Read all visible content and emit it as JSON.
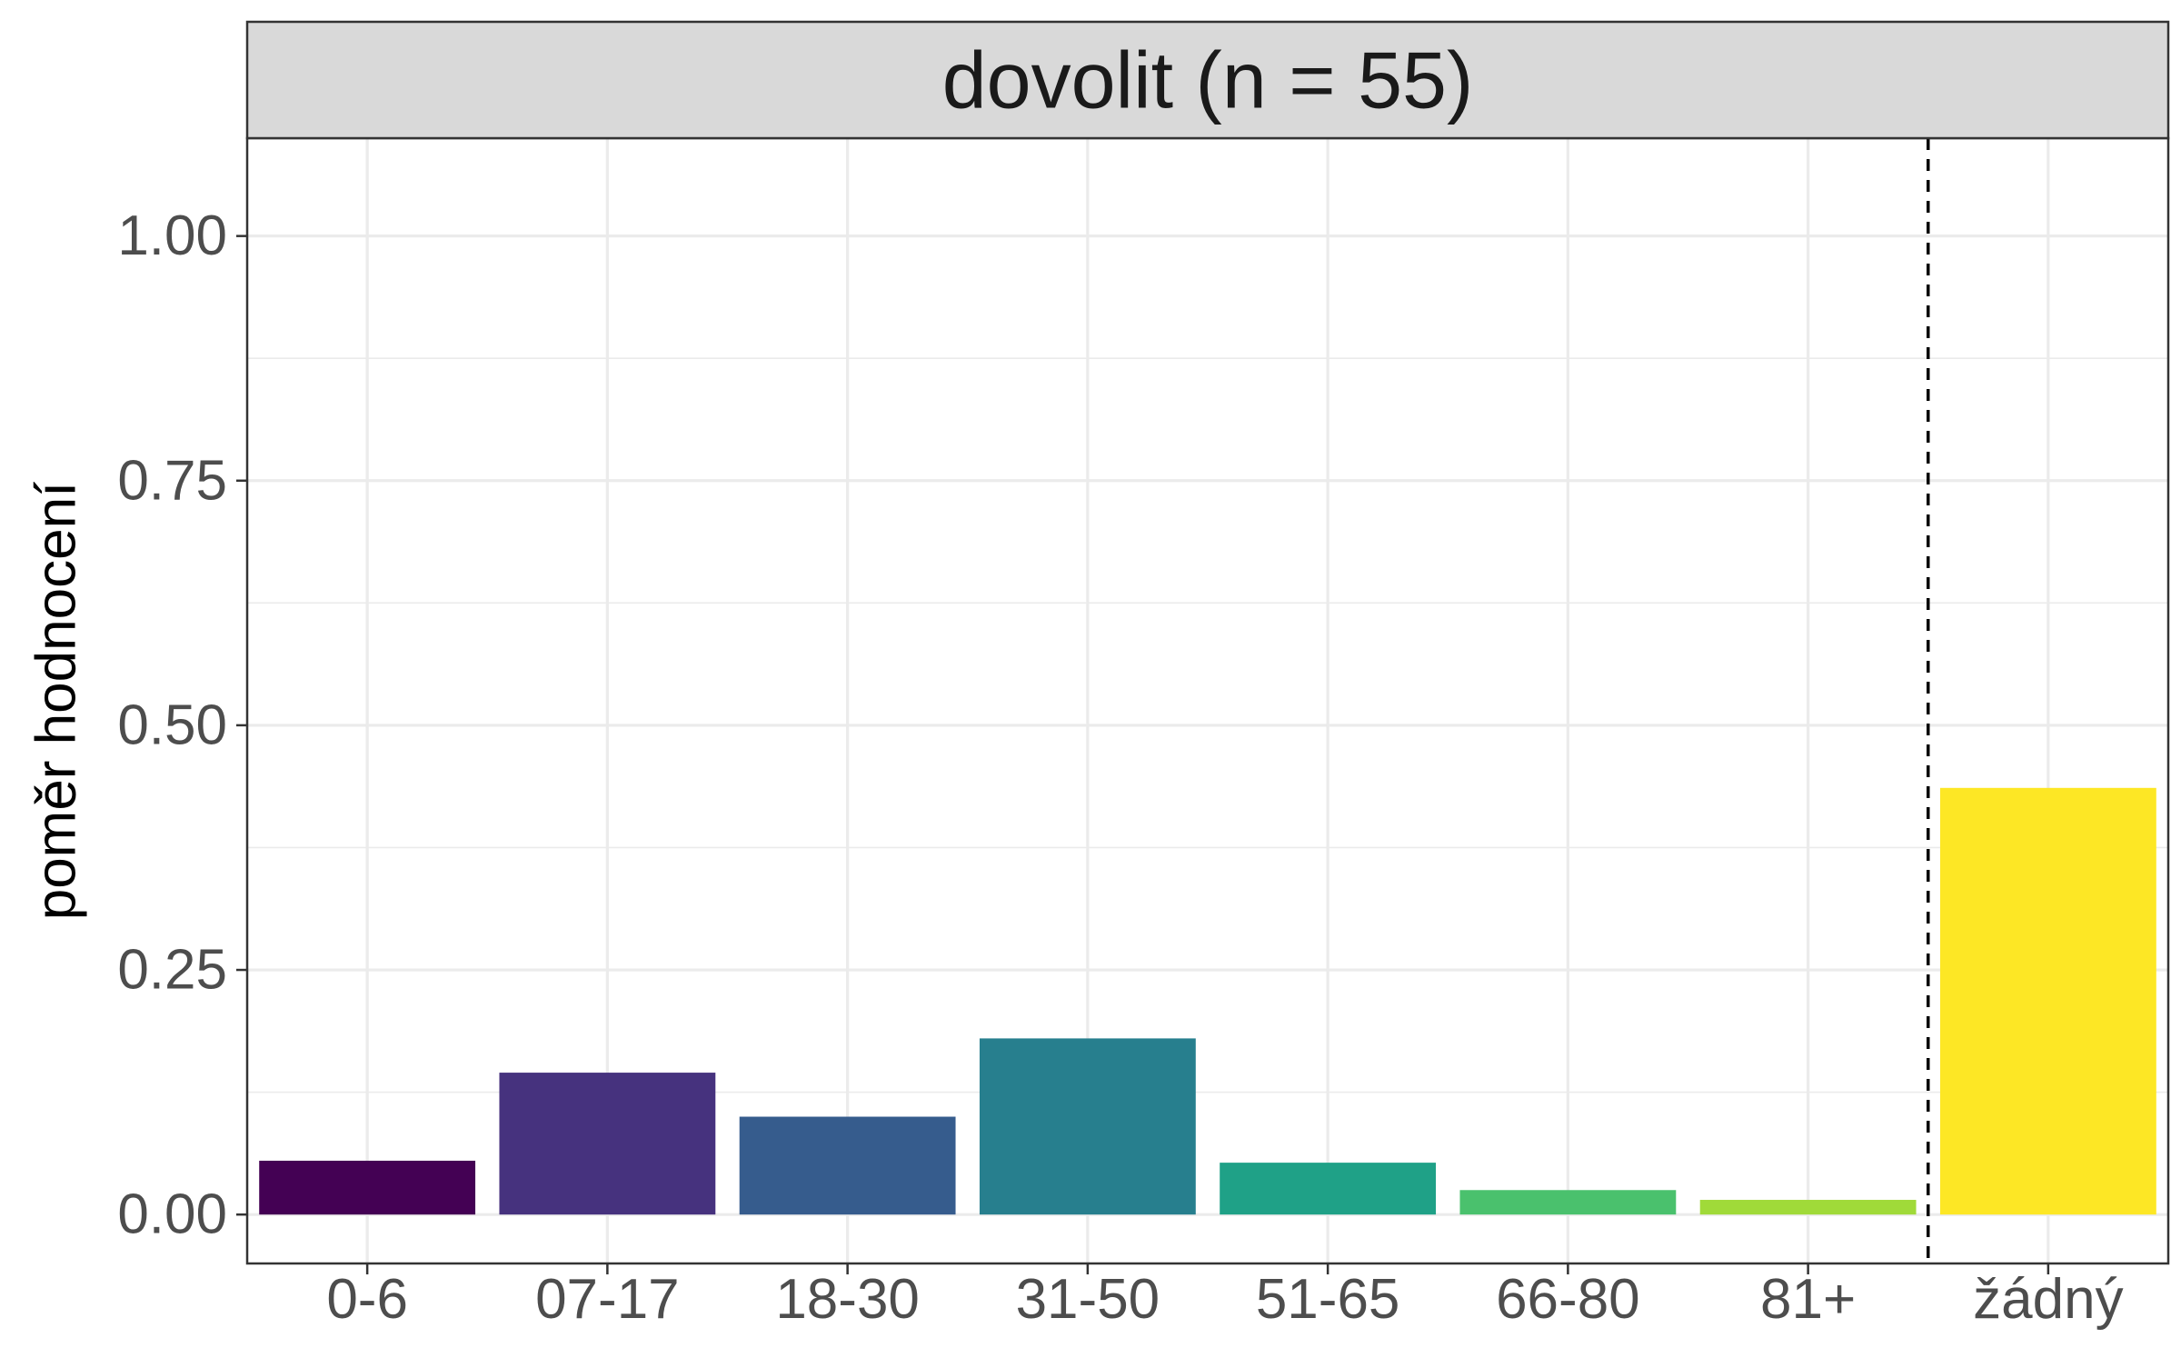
{
  "chart_data": {
    "type": "bar",
    "facet_title": "dovolit (n = 55)",
    "ylabel": "poměr hodnocení",
    "xlabel": "",
    "ylim": [
      -0.05,
      1.1
    ],
    "yticks": [
      0.0,
      0.25,
      0.5,
      0.75,
      1.0
    ],
    "ytick_labels": [
      "0.00",
      "0.25",
      "0.50",
      "0.75",
      "1.00"
    ],
    "categories": [
      "0-6",
      "07-17",
      "18-30",
      "31-50",
      "51-65",
      "66-80",
      "81+",
      "žádný"
    ],
    "values": [
      0.055,
      0.145,
      0.1,
      0.18,
      0.053,
      0.025,
      0.015,
      0.436
    ],
    "colors": [
      "#440154",
      "#46327E",
      "#365C8D",
      "#277F8E",
      "#1FA187",
      "#4AC16D",
      "#A0DA39",
      "#FDE725"
    ],
    "reference_line": {
      "between_categories": [
        "81+",
        "žádný"
      ],
      "style": "dashed"
    },
    "grid": true,
    "legend": "none"
  }
}
